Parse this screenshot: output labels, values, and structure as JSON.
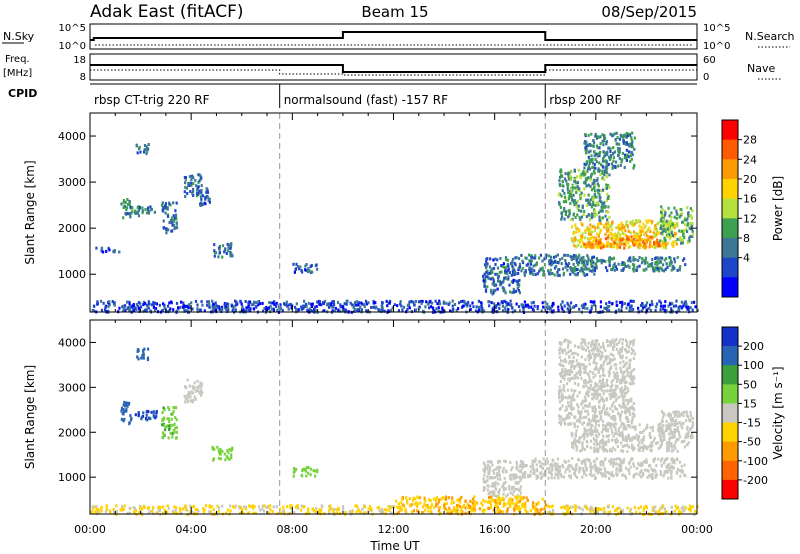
{
  "header": {
    "station": "Adak East (fitACF)",
    "beam": "Beam 15",
    "date": "08/Sep/2015"
  },
  "params": {
    "nsky_label": "N.Sky",
    "nsky_ticks": [
      "10^5",
      "10^0"
    ],
    "nsearch_label": "N.Search",
    "nsearch_ticks": [
      "10^5",
      "10^0"
    ],
    "freq_label": "Freq.",
    "freq_unit": "[MHz]",
    "freq_ticks": [
      "18",
      "8"
    ],
    "nave_label": "Nave",
    "nave_ticks": [
      "60",
      "0"
    ],
    "cpid_label": "CPID",
    "cpid_segments": [
      {
        "name": "rbsp CT-trig 220 RF",
        "start": 0.0,
        "end": 7.5
      },
      {
        "name": "normalsound (fast) -157 RF",
        "start": 7.5,
        "end": 18.0
      },
      {
        "name": "rbsp 200 RF",
        "start": 18.0,
        "end": 24.0
      }
    ]
  },
  "colorbars": {
    "power": {
      "label": "Power [dB]",
      "ticks": [
        "28",
        "24",
        "20",
        "16",
        "12",
        "8",
        "4"
      ],
      "colors": [
        "#ff0000",
        "#ff5a00",
        "#ff9b00",
        "#ffd200",
        "#b4e13c",
        "#3ca050",
        "#3c7896",
        "#1e46c8",
        "#0000ff"
      ]
    },
    "velocity": {
      "label": "Velocity [m s⁻¹]",
      "ticks": [
        "200",
        "100",
        "50",
        "15",
        "-15",
        "-50",
        "-100",
        "-200"
      ],
      "colors": [
        "#1432c8",
        "#2864b4",
        "#3ca03c",
        "#78d23c",
        "#c8c8c0",
        "#ffd200",
        "#ff9b00",
        "#ff6400",
        "#ff0000"
      ]
    }
  },
  "chart_data": [
    {
      "type": "heatmap",
      "title": "Power",
      "ylabel": "Slant Range [km]",
      "xlabel": "Time UT",
      "xlim": [
        0,
        24
      ],
      "ylim": [
        180,
        4500
      ],
      "x_ticks": [
        "00:00",
        "04:00",
        "08:00",
        "12:00",
        "16:00",
        "20:00",
        "00:00"
      ],
      "y_ticks": [
        1000,
        2000,
        3000,
        4000
      ],
      "mode_change_lines": [
        7.5,
        18.0
      ],
      "regions": [
        {
          "t": [
            1.2,
            1.6
          ],
          "r": [
            2200,
            2700
          ],
          "value": 10
        },
        {
          "t": [
            1.8,
            2.3
          ],
          "r": [
            3650,
            3900
          ],
          "value": 8
        },
        {
          "t": [
            1.5,
            2.6
          ],
          "r": [
            2300,
            2500
          ],
          "value": 9
        },
        {
          "t": [
            2.8,
            3.4
          ],
          "r": [
            1900,
            2600
          ],
          "value": 7
        },
        {
          "t": [
            3.7,
            4.4
          ],
          "r": [
            2700,
            3200
          ],
          "value": 8
        },
        {
          "t": [
            4.2,
            4.7
          ],
          "r": [
            2500,
            2900
          ],
          "value": 6
        },
        {
          "t": [
            4.8,
            5.6
          ],
          "r": [
            1400,
            1700
          ],
          "value": 7
        },
        {
          "t": [
            0.2,
            1.2
          ],
          "r": [
            1500,
            1600
          ],
          "value": 6
        },
        {
          "t": [
            8.0,
            9.0
          ],
          "r": [
            1050,
            1250
          ],
          "value": 7
        },
        {
          "t": [
            15.5,
            17.0
          ],
          "r": [
            600,
            1400
          ],
          "value": 7
        },
        {
          "t": [
            17.0,
            20.0
          ],
          "r": [
            1000,
            1450
          ],
          "value": 8
        },
        {
          "t": [
            19.0,
            23.5
          ],
          "r": [
            1100,
            1400
          ],
          "value": 9
        },
        {
          "t": [
            19.0,
            23.2
          ],
          "r": [
            1600,
            2200
          ],
          "value": 18
        },
        {
          "t": [
            19.5,
            22.5
          ],
          "r": [
            1600,
            1850
          ],
          "value": 22
        },
        {
          "t": [
            18.5,
            20.5
          ],
          "r": [
            2200,
            3300
          ],
          "value": 11
        },
        {
          "t": [
            19.5,
            21.5
          ],
          "r": [
            3300,
            4100
          ],
          "value": 9
        },
        {
          "t": [
            22.5,
            23.8
          ],
          "r": [
            1700,
            2500
          ],
          "value": 12
        },
        {
          "t": [
            0.0,
            24.0
          ],
          "r": [
            200,
            450
          ],
          "value": 5
        }
      ]
    },
    {
      "type": "heatmap",
      "title": "Velocity",
      "ylabel": "Slant Range [km]",
      "xlabel": "Time UT",
      "xlim": [
        0,
        24
      ],
      "ylim": [
        180,
        4500
      ],
      "x_ticks": [
        "00:00",
        "04:00",
        "08:00",
        "12:00",
        "16:00",
        "20:00",
        "00:00"
      ],
      "y_ticks": [
        1000,
        2000,
        3000,
        4000
      ],
      "mode_change_lines": [
        7.5,
        18.0
      ],
      "regions": [
        {
          "t": [
            1.2,
            1.6
          ],
          "r": [
            2200,
            2700
          ],
          "value": 180
        },
        {
          "t": [
            1.8,
            2.3
          ],
          "r": [
            3650,
            3900
          ],
          "value": 150
        },
        {
          "t": [
            1.5,
            2.6
          ],
          "r": [
            2300,
            2500
          ],
          "value": 200
        },
        {
          "t": [
            3.7,
            4.4
          ],
          "r": [
            2700,
            3200
          ],
          "value": 0
        },
        {
          "t": [
            2.8,
            3.4
          ],
          "r": [
            1900,
            2600
          ],
          "value": 40
        },
        {
          "t": [
            4.8,
            5.6
          ],
          "r": [
            1400,
            1700
          ],
          "value": 30
        },
        {
          "t": [
            8.0,
            9.0
          ],
          "r": [
            1050,
            1250
          ],
          "value": 30
        },
        {
          "t": [
            15.5,
            17.0
          ],
          "r": [
            600,
            1400
          ],
          "value": 0
        },
        {
          "t": [
            17.0,
            23.5
          ],
          "r": [
            1000,
            1450
          ],
          "value": 0
        },
        {
          "t": [
            19.0,
            23.2
          ],
          "r": [
            1600,
            2200
          ],
          "value": 0
        },
        {
          "t": [
            18.5,
            21.5
          ],
          "r": [
            2200,
            4100
          ],
          "value": 0
        },
        {
          "t": [
            22.5,
            23.8
          ],
          "r": [
            1700,
            2500
          ],
          "value": 0
        },
        {
          "t": [
            0.0,
            12.0
          ],
          "r": [
            200,
            400
          ],
          "value": -20
        },
        {
          "t": [
            12.0,
            18.0
          ],
          "r": [
            200,
            600
          ],
          "value": -45
        },
        {
          "t": [
            18.0,
            24.0
          ],
          "r": [
            200,
            400
          ],
          "value": -20
        }
      ]
    }
  ]
}
